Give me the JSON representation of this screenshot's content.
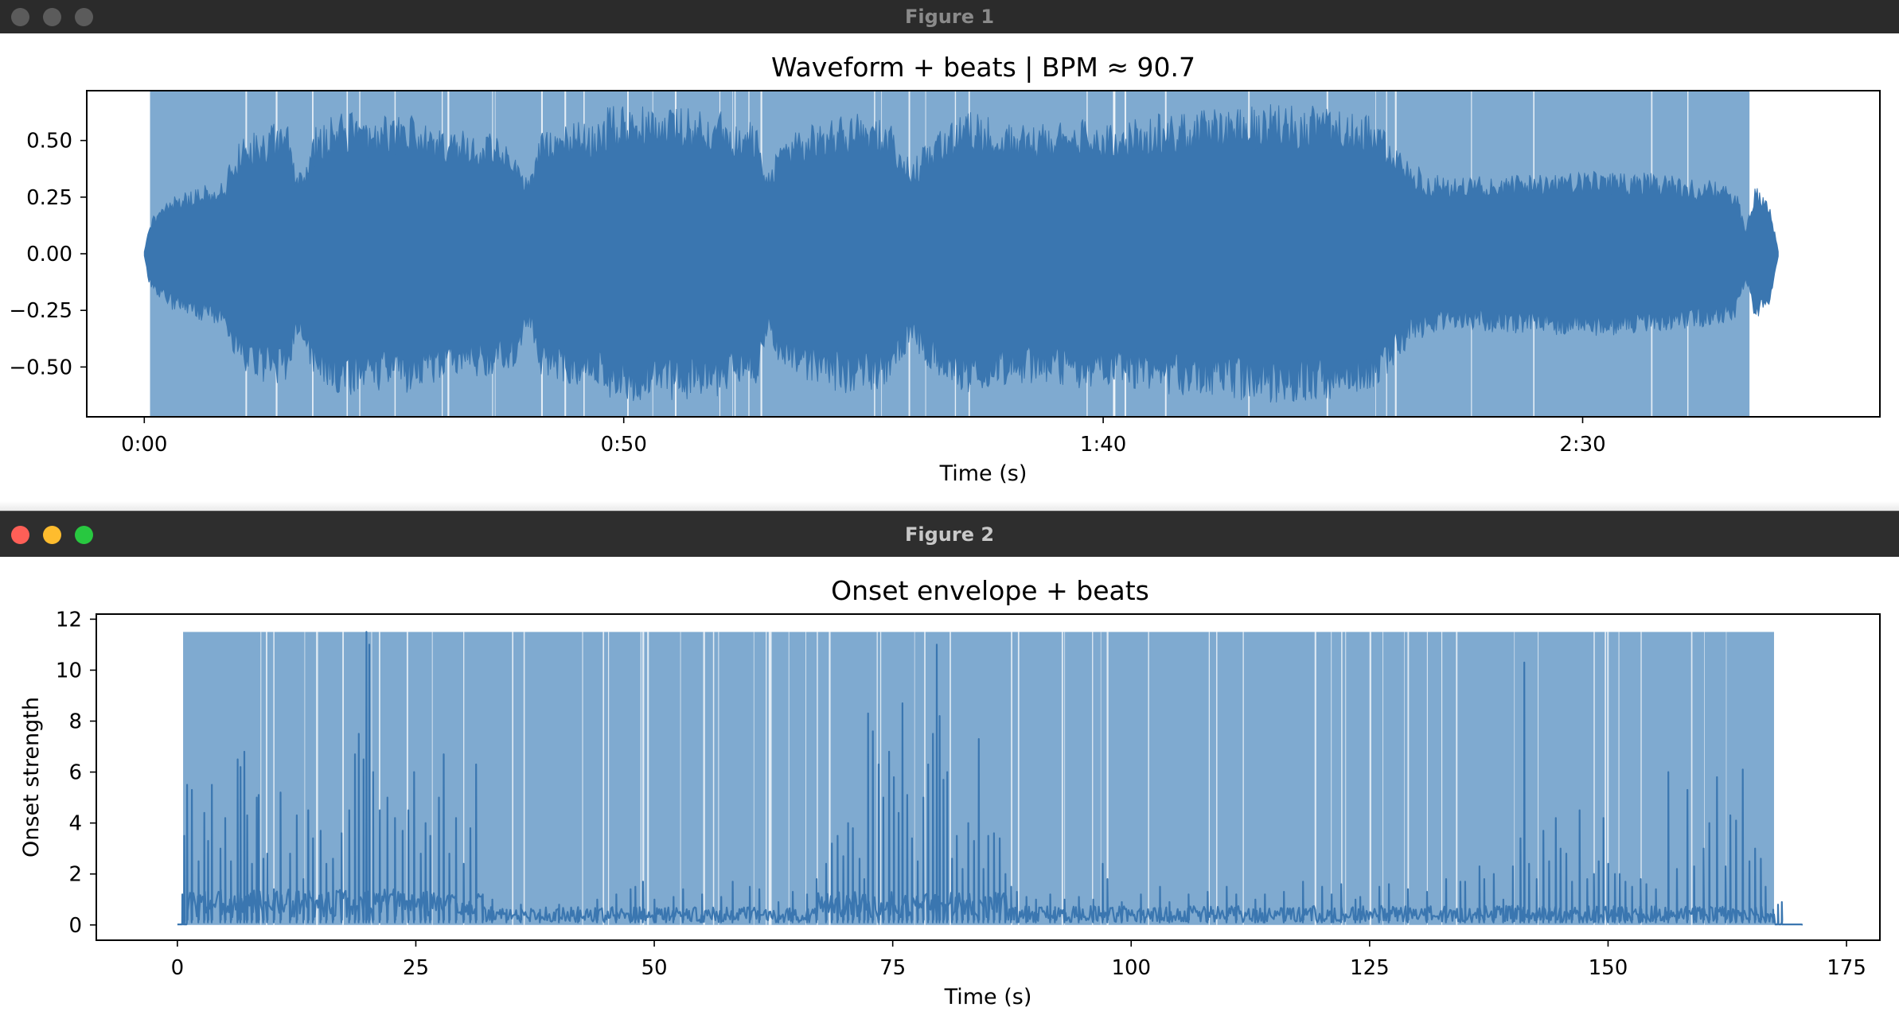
{
  "windows": [
    {
      "title": "Figure 1"
    },
    {
      "title": "Figure 2"
    }
  ],
  "colors": {
    "wave": "#3a76b0",
    "beat_fill": "#7faad0",
    "beat_gap": "#ffffff"
  },
  "chart_data": [
    {
      "type": "area",
      "title": "Waveform + beats | BPM ≈ 90.7",
      "xlabel": "Time (s)",
      "ylabel": "",
      "xlim": [
        -6,
        181
      ],
      "ylim": [
        -0.72,
        0.72
      ],
      "xticks": [
        0,
        50,
        100,
        150
      ],
      "xtick_labels": [
        "0:00",
        "0:50",
        "1:40",
        "2:30"
      ],
      "yticks": [
        0.5,
        0.25,
        0.0,
        -0.25,
        -0.5
      ],
      "ytick_labels": [
        "0.50",
        "0.25",
        "0.00",
        "−0.25",
        "−0.50"
      ],
      "beat_span": [
        0.6,
        167.4
      ],
      "duration": 170.4,
      "envelope": [
        [
          0.0,
          0.01
        ],
        [
          0.5,
          0.12
        ],
        [
          1.5,
          0.18
        ],
        [
          3.0,
          0.22
        ],
        [
          5.0,
          0.25
        ],
        [
          7.0,
          0.27
        ],
        [
          8.5,
          0.3
        ],
        [
          9.5,
          0.42
        ],
        [
          11.0,
          0.47
        ],
        [
          13.0,
          0.5
        ],
        [
          15.0,
          0.5
        ],
        [
          16.0,
          0.3
        ],
        [
          18.0,
          0.5
        ],
        [
          21.0,
          0.55
        ],
        [
          24.0,
          0.52
        ],
        [
          27.0,
          0.55
        ],
        [
          30.0,
          0.5
        ],
        [
          33.0,
          0.48
        ],
        [
          36.0,
          0.47
        ],
        [
          38.5,
          0.44
        ],
        [
          40.0,
          0.28
        ],
        [
          41.5,
          0.48
        ],
        [
          44.0,
          0.5
        ],
        [
          47.0,
          0.52
        ],
        [
          48.5,
          0.57
        ],
        [
          52.0,
          0.57
        ],
        [
          56.0,
          0.56
        ],
        [
          60.0,
          0.55
        ],
        [
          64.0,
          0.5
        ],
        [
          65.0,
          0.3
        ],
        [
          66.5,
          0.45
        ],
        [
          70.0,
          0.5
        ],
        [
          74.0,
          0.55
        ],
        [
          78.0,
          0.5
        ],
        [
          80.0,
          0.35
        ],
        [
          82.0,
          0.45
        ],
        [
          86.0,
          0.55
        ],
        [
          90.0,
          0.5
        ],
        [
          93.0,
          0.5
        ],
        [
          95.0,
          0.5
        ],
        [
          98.0,
          0.52
        ],
        [
          100.0,
          0.5
        ],
        [
          103.0,
          0.52
        ],
        [
          108.0,
          0.55
        ],
        [
          114.0,
          0.56
        ],
        [
          118.0,
          0.58
        ],
        [
          122.0,
          0.57
        ],
        [
          125.0,
          0.55
        ],
        [
          128.0,
          0.55
        ],
        [
          130.0,
          0.45
        ],
        [
          132.0,
          0.35
        ],
        [
          135.0,
          0.3
        ],
        [
          140.0,
          0.3
        ],
        [
          145.0,
          0.31
        ],
        [
          150.0,
          0.32
        ],
        [
          155.0,
          0.32
        ],
        [
          160.0,
          0.3
        ],
        [
          164.0,
          0.28
        ],
        [
          166.0,
          0.25
        ],
        [
          167.0,
          0.1
        ],
        [
          168.0,
          0.26
        ],
        [
          169.5,
          0.2
        ],
        [
          170.4,
          0.01
        ]
      ]
    },
    {
      "type": "line",
      "title": "Onset envelope + beats",
      "xlabel": "Time (s)",
      "ylabel": "Onset strength",
      "xlim": [
        -8.5,
        178.5
      ],
      "ylim": [
        -0.6,
        12.2
      ],
      "xticks": [
        0,
        25,
        50,
        75,
        100,
        125,
        150,
        175
      ],
      "xtick_labels": [
        "0",
        "25",
        "50",
        "75",
        "100",
        "125",
        "150",
        "175"
      ],
      "yticks": [
        0,
        2,
        4,
        6,
        8,
        10,
        12
      ],
      "ytick_labels": [
        "0",
        "2",
        "4",
        "6",
        "8",
        "10",
        "12"
      ],
      "beat_span": [
        0.6,
        167.4
      ],
      "beat_top": 11.5,
      "duration": 170.4,
      "peaks": [
        [
          0.5,
          1.2
        ],
        [
          0.7,
          3.5
        ],
        [
          1.0,
          5.5
        ],
        [
          1.5,
          5.3
        ],
        [
          2.2,
          2.5
        ],
        [
          2.8,
          4.4
        ],
        [
          3.2,
          3.3
        ],
        [
          3.6,
          5.5
        ],
        [
          4.5,
          3.0
        ],
        [
          5.0,
          4.2
        ],
        [
          5.6,
          2.5
        ],
        [
          6.3,
          6.5
        ],
        [
          6.6,
          6.2
        ],
        [
          7.0,
          6.8
        ],
        [
          7.3,
          4.3
        ],
        [
          7.8,
          2.4
        ],
        [
          8.3,
          5.0
        ],
        [
          8.5,
          5.1
        ],
        [
          9.0,
          2.6
        ],
        [
          9.4,
          2.8
        ],
        [
          10.1,
          1.4
        ],
        [
          10.8,
          5.2
        ],
        [
          11.8,
          2.8
        ],
        [
          12.5,
          4.3
        ],
        [
          13.2,
          1.8
        ],
        [
          13.7,
          4.5
        ],
        [
          14.2,
          3.4
        ],
        [
          15.0,
          3.7
        ],
        [
          15.6,
          2.4
        ],
        [
          16.3,
          2.6
        ],
        [
          17.2,
          3.6
        ],
        [
          18.0,
          4.5
        ],
        [
          18.6,
          6.7
        ],
        [
          19.0,
          7.5
        ],
        [
          19.5,
          6.5
        ],
        [
          19.8,
          11.5
        ],
        [
          20.1,
          11.0
        ],
        [
          20.5,
          6.0
        ],
        [
          21.2,
          4.5
        ],
        [
          22.0,
          5.0
        ],
        [
          22.8,
          4.2
        ],
        [
          23.6,
          3.7
        ],
        [
          24.2,
          4.5
        ],
        [
          24.8,
          6.0
        ],
        [
          25.5,
          2.8
        ],
        [
          26.0,
          4.0
        ],
        [
          26.5,
          3.5
        ],
        [
          27.4,
          5.0
        ],
        [
          27.9,
          6.7
        ],
        [
          28.5,
          2.8
        ],
        [
          29.2,
          4.2
        ],
        [
          30.0,
          2.4
        ],
        [
          30.7,
          3.8
        ],
        [
          31.3,
          6.3
        ],
        [
          32.0,
          1.2
        ],
        [
          33.0,
          1.0
        ],
        [
          34.5,
          0.6
        ],
        [
          36.0,
          0.8
        ],
        [
          38.0,
          0.6
        ],
        [
          40.0,
          0.8
        ],
        [
          42.0,
          0.7
        ],
        [
          44.0,
          1.0
        ],
        [
          46.0,
          1.2
        ],
        [
          47.5,
          1.4
        ],
        [
          48.0,
          1.5
        ],
        [
          48.8,
          1.7
        ],
        [
          50.0,
          1.0
        ],
        [
          52.0,
          1.1
        ],
        [
          53.0,
          1.4
        ],
        [
          55.0,
          1.2
        ],
        [
          57.0,
          1.1
        ],
        [
          58.2,
          1.7
        ],
        [
          60.0,
          1.5
        ],
        [
          61.0,
          1.4
        ],
        [
          63.0,
          0.9
        ],
        [
          64.5,
          1.3
        ],
        [
          66.0,
          1.2
        ],
        [
          67.0,
          1.8
        ],
        [
          68.0,
          2.4
        ],
        [
          68.6,
          3.2
        ],
        [
          69.2,
          3.5
        ],
        [
          69.8,
          2.7
        ],
        [
          70.3,
          4.0
        ],
        [
          70.8,
          3.8
        ],
        [
          71.5,
          2.6
        ],
        [
          72.0,
          1.8
        ],
        [
          72.4,
          8.3
        ],
        [
          72.9,
          7.6
        ],
        [
          73.5,
          6.3
        ],
        [
          74.0,
          5.0
        ],
        [
          74.6,
          6.8
        ],
        [
          75.1,
          5.8
        ],
        [
          75.6,
          4.4
        ],
        [
          76.0,
          8.7
        ],
        [
          76.5,
          5.1
        ],
        [
          77.0,
          3.4
        ],
        [
          77.6,
          2.5
        ],
        [
          78.2,
          5.0
        ],
        [
          78.7,
          6.3
        ],
        [
          79.2,
          7.5
        ],
        [
          79.6,
          11.0
        ],
        [
          79.9,
          8.2
        ],
        [
          80.3,
          5.7
        ],
        [
          80.7,
          6.0
        ],
        [
          81.2,
          2.6
        ],
        [
          81.7,
          3.5
        ],
        [
          82.3,
          2.2
        ],
        [
          82.9,
          4.0
        ],
        [
          83.5,
          3.3
        ],
        [
          84.0,
          7.3
        ],
        [
          84.5,
          2.2
        ],
        [
          85.0,
          3.5
        ],
        [
          85.6,
          3.6
        ],
        [
          86.2,
          3.4
        ],
        [
          86.8,
          2.0
        ],
        [
          87.4,
          1.5
        ],
        [
          88.0,
          1.3
        ],
        [
          89.0,
          1.1
        ],
        [
          90.0,
          1.0
        ],
        [
          91.5,
          1.2
        ],
        [
          92.0,
          0.7
        ],
        [
          93.0,
          1.0
        ],
        [
          94.5,
          1.1
        ],
        [
          96.0,
          1.0
        ],
        [
          97.0,
          2.4
        ],
        [
          97.5,
          1.8
        ],
        [
          99.0,
          0.9
        ],
        [
          101.0,
          1.2
        ],
        [
          103.0,
          1.5
        ],
        [
          104.0,
          0.9
        ],
        [
          106.0,
          1.2
        ],
        [
          108.0,
          1.3
        ],
        [
          110.0,
          1.5
        ],
        [
          111.0,
          1.2
        ],
        [
          113.0,
          1.0
        ],
        [
          114.0,
          1.2
        ],
        [
          116.0,
          1.3
        ],
        [
          118.0,
          1.7
        ],
        [
          120.0,
          1.5
        ],
        [
          121.0,
          1.2
        ],
        [
          122.0,
          1.6
        ],
        [
          123.5,
          1.0
        ],
        [
          124.0,
          1.1
        ],
        [
          126.0,
          1.5
        ],
        [
          127.0,
          1.6
        ],
        [
          129.0,
          1.4
        ],
        [
          131.0,
          1.3
        ],
        [
          133.0,
          1.8
        ],
        [
          134.5,
          1.7
        ],
        [
          135.0,
          1.7
        ],
        [
          136.5,
          2.3
        ],
        [
          137.0,
          1.8
        ],
        [
          138.0,
          2.0
        ],
        [
          139.0,
          1.0
        ],
        [
          140.0,
          2.3
        ],
        [
          140.8,
          3.4
        ],
        [
          141.2,
          10.3
        ],
        [
          141.7,
          2.4
        ],
        [
          142.5,
          1.8
        ],
        [
          143.2,
          3.7
        ],
        [
          143.8,
          2.5
        ],
        [
          144.5,
          4.2
        ],
        [
          145.0,
          3.0
        ],
        [
          145.6,
          2.8
        ],
        [
          146.2,
          1.7
        ],
        [
          147.0,
          4.5
        ],
        [
          147.8,
          1.8
        ],
        [
          148.5,
          2.0
        ],
        [
          149.0,
          2.5
        ],
        [
          149.5,
          4.2
        ],
        [
          150.0,
          2.4
        ],
        [
          150.7,
          2.0
        ],
        [
          151.2,
          2.0
        ],
        [
          151.8,
          1.7
        ],
        [
          152.5,
          1.5
        ],
        [
          153.4,
          1.8
        ],
        [
          154.0,
          1.6
        ],
        [
          155.0,
          1.4
        ],
        [
          156.3,
          6.0
        ],
        [
          157.2,
          2.2
        ],
        [
          158.3,
          5.3
        ],
        [
          159.0,
          2.3
        ],
        [
          160.0,
          3.0
        ],
        [
          160.6,
          4.0
        ],
        [
          161.4,
          5.8
        ],
        [
          162.3,
          2.3
        ],
        [
          162.8,
          4.3
        ],
        [
          163.4,
          4.1
        ],
        [
          164.1,
          6.1
        ],
        [
          164.8,
          2.5
        ],
        [
          165.4,
          3.0
        ],
        [
          166.0,
          2.6
        ],
        [
          166.5,
          1.5
        ],
        [
          167.3,
          0.6
        ],
        [
          167.8,
          0.8
        ],
        [
          168.2,
          0.9
        ]
      ]
    }
  ]
}
